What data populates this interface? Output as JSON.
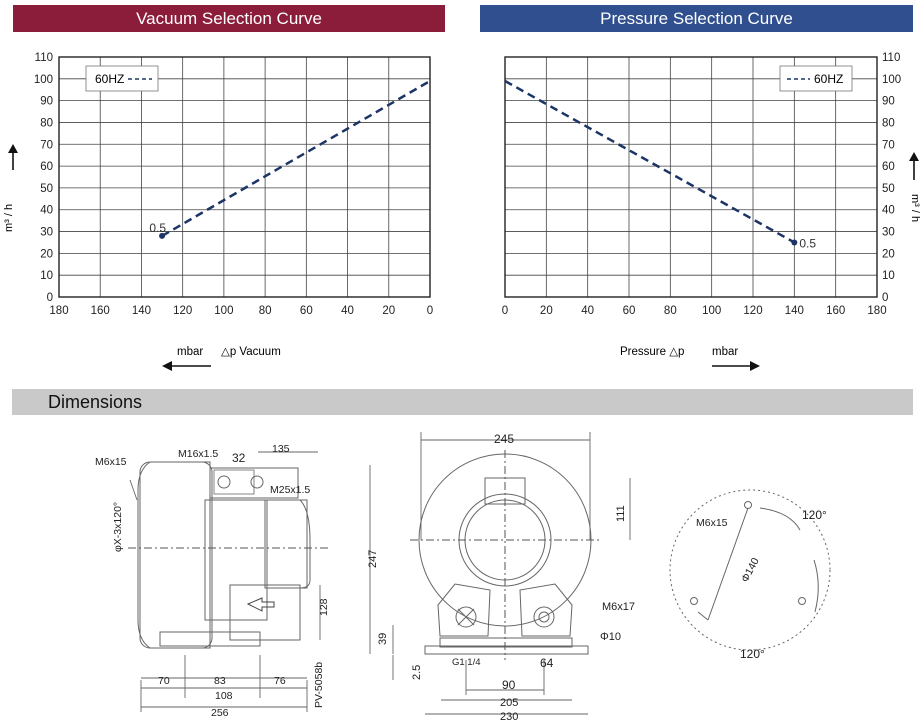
{
  "banners": {
    "vacuum": "Vacuum Selection Curve",
    "pressure": "Pressure Selection Curve",
    "dimensions": "Dimensions"
  },
  "colors": {
    "vacuum_banner": "#8b1d3b",
    "pressure_banner": "#2f4f8f",
    "curve": "#1c3566",
    "dimensions_banner": "#c9c9c9"
  },
  "chart_data": [
    {
      "type": "line",
      "title": "Vacuum Selection Curve",
      "ylabel": "m³ / h",
      "xlabel_left": "mbar",
      "xlabel_right": "△p  Vacuum",
      "x_reversed": true,
      "xlim": [
        180,
        0
      ],
      "ylim": [
        0,
        110
      ],
      "x_ticks": [
        "180",
        "160",
        "140",
        "120",
        "100",
        "80",
        "60",
        "40",
        "20",
        "0"
      ],
      "y_ticks": [
        "0",
        "10",
        "20",
        "30",
        "40",
        "50",
        "60",
        "70",
        "80",
        "90",
        "100",
        "110"
      ],
      "grid": true,
      "legend": {
        "label": "60HZ",
        "placement": "top-left"
      },
      "series": [
        {
          "name": "60HZ",
          "style": "dashed",
          "x": [
            130,
            0
          ],
          "y": [
            28,
            99
          ]
        }
      ],
      "annotation": {
        "text": "0.5",
        "x": 130,
        "y": 28
      }
    },
    {
      "type": "line",
      "title": "Pressure Selection Curve",
      "ylabel": "m³ / h",
      "xlabel_left": "Pressure  △p",
      "xlabel_right": "mbar",
      "xlim": [
        0,
        180
      ],
      "ylim": [
        0,
        110
      ],
      "x_ticks": [
        "0",
        "20",
        "40",
        "60",
        "80",
        "100",
        "120",
        "140",
        "160",
        "180"
      ],
      "y_ticks": [
        "0",
        "10",
        "20",
        "30",
        "40",
        "50",
        "60",
        "70",
        "80",
        "90",
        "100",
        "110"
      ],
      "grid": true,
      "legend": {
        "label": "60HZ",
        "placement": "top-right"
      },
      "series": [
        {
          "name": "60HZ",
          "style": "dashed",
          "x": [
            0,
            140
          ],
          "y": [
            99,
            25
          ]
        }
      ],
      "annotation": {
        "text": "0.5",
        "x": 140,
        "y": 25
      }
    }
  ],
  "dimensions": {
    "side": {
      "m6x15": "M6x15",
      "m16": "M16x1.5",
      "d32": "32",
      "d135": "135",
      "m25": "M25x1.5",
      "phi": "φX-3x120°",
      "d128": "128",
      "model": "PV-5058b",
      "d70": "70",
      "d83": "83",
      "d76": "76",
      "d108": "108",
      "d256": "256"
    },
    "front": {
      "d245": "245",
      "d111": "111",
      "d247": "247",
      "m6x17": "M6x17",
      "d39": "39",
      "phi10": "Φ10",
      "g1": "G1 1/4",
      "d64": "64",
      "d2_5": "2.5",
      "d90": "90",
      "d205": "205",
      "d230": "230"
    },
    "flange": {
      "m6x15": "M6x15",
      "a1": "120°",
      "phi140": "Φ140",
      "a2": "120°"
    }
  }
}
